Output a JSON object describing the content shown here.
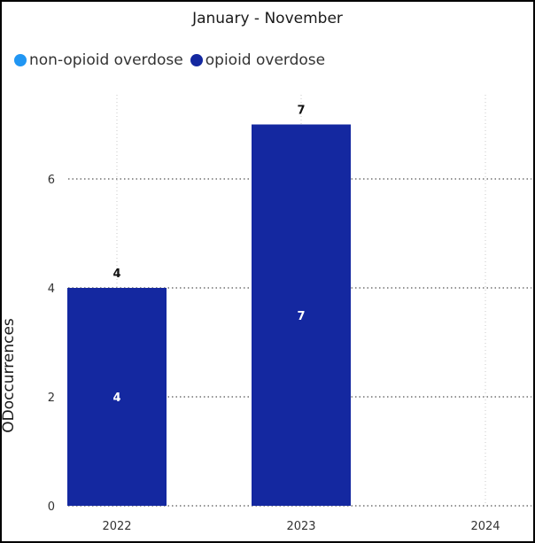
{
  "chart_data": {
    "type": "bar",
    "title": "January - November",
    "xlabel": "",
    "ylabel": "ODoccurrences",
    "categories": [
      "2022",
      "2023",
      "2024"
    ],
    "series": [
      {
        "name": "non-opioid overdose",
        "color": "#2196f3",
        "values": [
          0,
          0,
          0
        ]
      },
      {
        "name": "opioid overdose",
        "color": "#1428a0",
        "values": [
          4,
          7,
          0
        ]
      }
    ],
    "ylim": [
      0,
      7.5
    ],
    "yticks": [
      0,
      2,
      4,
      6
    ],
    "grid": true,
    "legend_position": "top-left",
    "data_labels": {
      "above": [
        4,
        7
      ],
      "inside": [
        4,
        7
      ]
    }
  }
}
